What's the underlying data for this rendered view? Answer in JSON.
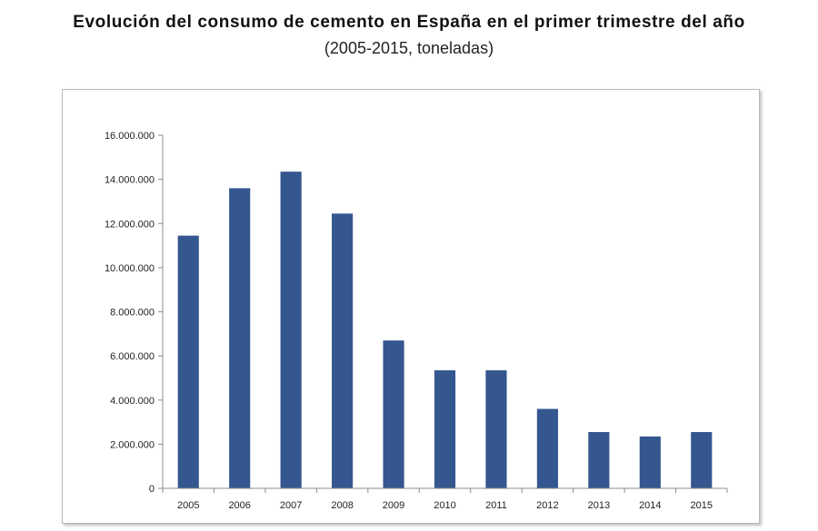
{
  "title": "Evolución del consumo de cemento en España en el primer trimestre del año",
  "subtitle": "(2005-2015, toneladas)",
  "colors": {
    "bar": "#34578f",
    "axis": "#8c8c8c"
  },
  "chart_data": {
    "type": "bar",
    "title": "Evolución del consumo de cemento en España en el primer trimestre del año",
    "subtitle": "(2005-2015, toneladas)",
    "xlabel": "",
    "ylabel": "",
    "categories": [
      "2005",
      "2006",
      "2007",
      "2008",
      "2009",
      "2010",
      "2011",
      "2012",
      "2013",
      "2014",
      "2015"
    ],
    "values": [
      11450000,
      13600000,
      14350000,
      12450000,
      6700000,
      5350000,
      5350000,
      3600000,
      2550000,
      2350000,
      2550000
    ],
    "ylim": [
      0,
      16000000
    ],
    "yticks": [
      0,
      2000000,
      4000000,
      6000000,
      8000000,
      10000000,
      12000000,
      14000000,
      16000000
    ],
    "ytick_labels": [
      "0",
      "2.000.000",
      "4.000.000",
      "6.000.000",
      "8.000.000",
      "10.000.000",
      "12.000.000",
      "14.000.000",
      "16.000.000"
    ],
    "grid": false,
    "legend": "none"
  }
}
